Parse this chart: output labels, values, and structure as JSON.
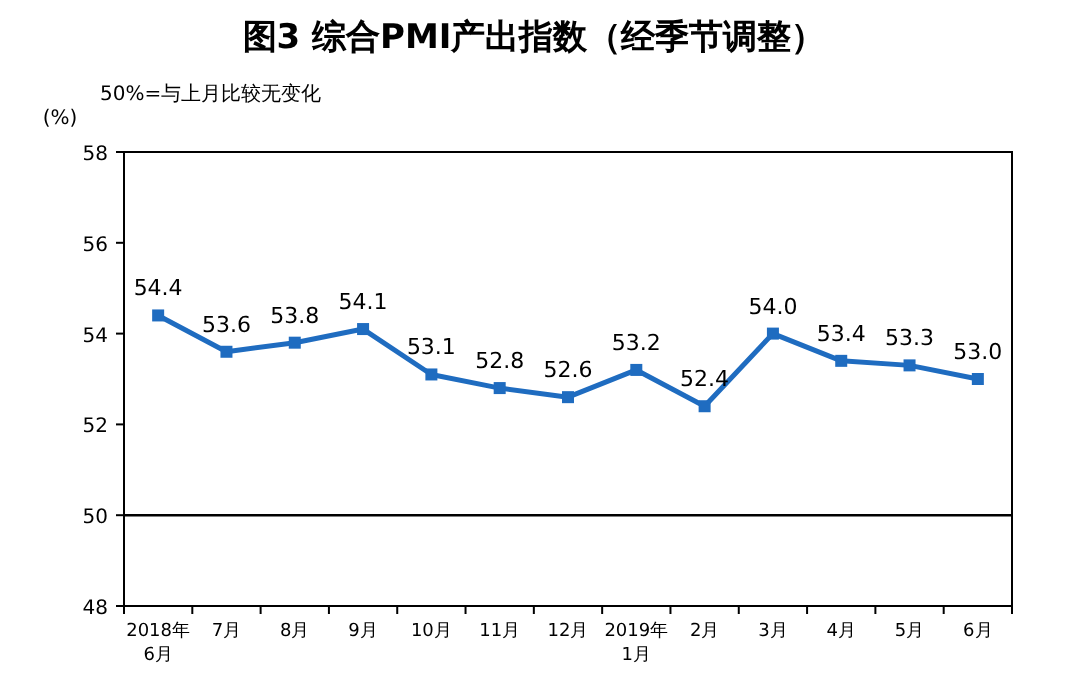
{
  "chart_data": {
    "type": "line",
    "title": "图3 综合PMI产出指数（经季节调整）",
    "ylabel": "(%)",
    "annotations": [
      "50%=与上月比较无变化"
    ],
    "categories": [
      "2018年\n6月",
      "7月",
      "8月",
      "9月",
      "10月",
      "11月",
      "12月",
      "2019年\n1月",
      "2月",
      "3月",
      "4月",
      "5月",
      "6月"
    ],
    "series": [
      {
        "color": "#1f6cc0",
        "values": [
          54.4,
          53.6,
          53.8,
          54.1,
          53.1,
          52.8,
          52.6,
          53.2,
          52.4,
          54.0,
          53.4,
          53.3,
          53.0
        ],
        "value_labels": [
          "54.4",
          "53.6",
          "53.8",
          "54.1",
          "53.1",
          "52.8",
          "52.6",
          "53.2",
          "52.4",
          "54.0",
          "53.4",
          "53.3",
          "53.0"
        ]
      }
    ],
    "ylim": [
      48,
      58
    ],
    "yticks": [
      48,
      50,
      52,
      54,
      56,
      58
    ],
    "ref_lines": [
      {
        "axis": "y",
        "value": 50,
        "color": "#000000"
      }
    ],
    "marker": "square",
    "line_style": "solid",
    "grid": false
  }
}
